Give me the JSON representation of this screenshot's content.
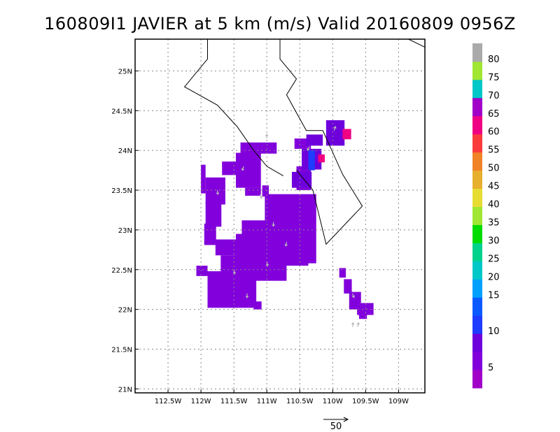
{
  "title": "160809I1 JAVIER at 5 km (m/s) Valid 20160809 0956Z",
  "map": {
    "lon_range": [
      -113,
      -108.6
    ],
    "lat_range": [
      20.95,
      25.4
    ],
    "lon_ticks": [
      {
        "value": -112.5,
        "label": "112.5W"
      },
      {
        "value": -112,
        "label": "112W"
      },
      {
        "value": -111.5,
        "label": "111.5W"
      },
      {
        "value": -111,
        "label": "111W"
      },
      {
        "value": -110.5,
        "label": "110.5W"
      },
      {
        "value": -110,
        "label": "110W"
      },
      {
        "value": -109.5,
        "label": "109.5W"
      },
      {
        "value": -109,
        "label": "109W"
      }
    ],
    "lat_ticks": [
      {
        "value": 25,
        "label": "25N"
      },
      {
        "value": 24.5,
        "label": "24.5N"
      },
      {
        "value": 24,
        "label": "24N"
      },
      {
        "value": 23.5,
        "label": "23.5N"
      },
      {
        "value": 23,
        "label": "23N"
      },
      {
        "value": 22.5,
        "label": "22.5N"
      },
      {
        "value": 22,
        "label": "22N"
      },
      {
        "value": 21.5,
        "label": "21.5N"
      },
      {
        "value": 21,
        "label": "21N"
      }
    ],
    "grid": true,
    "coastlines": [
      [
        [
          -111.9,
          25.4
        ],
        [
          -111.9,
          25.15
        ],
        [
          -112.25,
          24.8
        ],
        [
          -111.75,
          24.57
        ],
        [
          -111.45,
          24.3
        ],
        [
          -111.2,
          24.0
        ],
        [
          -111.0,
          23.8
        ],
        [
          -110.75,
          23.68
        ]
      ],
      [
        [
          -110.8,
          25.4
        ],
        [
          -110.8,
          25.15
        ],
        [
          -110.55,
          24.9
        ],
        [
          -110.7,
          24.7
        ],
        [
          -110.6,
          24.55
        ],
        [
          -110.4,
          24.25
        ],
        [
          -110.2,
          24.25
        ]
      ],
      [
        [
          -110.55,
          23.75
        ],
        [
          -110.3,
          23.5
        ],
        [
          -110.1,
          22.82
        ],
        [
          -109.55,
          23.3
        ],
        [
          -109.85,
          23.7
        ],
        [
          -110.15,
          24.25
        ],
        [
          -110.2,
          24.25
        ]
      ],
      [
        [
          -108.85,
          25.4
        ],
        [
          -108.6,
          25.3
        ]
      ]
    ],
    "wind_cells": [
      {
        "lon": -112.0,
        "lat": 23.82,
        "dlon": 0.07,
        "dlat": 0.36,
        "v": 6
      },
      {
        "lon": -111.93,
        "lat": 23.66,
        "dlon": 0.3,
        "dlat": 0.34,
        "v": 6
      },
      {
        "lon": -111.93,
        "lat": 23.35,
        "dlon": 0.24,
        "dlat": 0.31,
        "v": 6
      },
      {
        "lon": -111.95,
        "lat": 23.08,
        "dlon": 0.18,
        "dlat": 0.27,
        "v": 6
      },
      {
        "lon": -111.68,
        "lat": 23.86,
        "dlon": 0.36,
        "dlat": 0.17,
        "v": 6
      },
      {
        "lon": -111.4,
        "lat": 24.1,
        "dlon": 0.55,
        "dlat": 0.14,
        "v": 6
      },
      {
        "lon": -111.47,
        "lat": 23.97,
        "dlon": 0.38,
        "dlat": 0.44,
        "v": 6
      },
      {
        "lon": -111.33,
        "lat": 23.53,
        "dlon": 0.24,
        "dlat": 0.1,
        "v": 6
      },
      {
        "lon": -111.07,
        "lat": 23.56,
        "dlon": 0.1,
        "dlat": 0.14,
        "v": 6
      },
      {
        "lon": -111.03,
        "lat": 23.45,
        "dlon": 0.78,
        "dlat": 0.87,
        "v": 6
      },
      {
        "lon": -111.38,
        "lat": 23.12,
        "dlon": 0.36,
        "dlat": 0.23,
        "v": 6
      },
      {
        "lon": -111.47,
        "lat": 22.95,
        "dlon": 1.1,
        "dlat": 0.4,
        "v": 6
      },
      {
        "lon": -110.5,
        "lat": 22.95,
        "dlon": 0.24,
        "dlat": 0.28,
        "v": 6
      },
      {
        "lon": -111.78,
        "lat": 22.88,
        "dlon": 0.33,
        "dlat": 0.2,
        "v": 6
      },
      {
        "lon": -111.7,
        "lat": 22.68,
        "dlon": 1.0,
        "dlat": 0.32,
        "v": 6
      },
      {
        "lon": -111.9,
        "lat": 22.48,
        "dlon": 0.74,
        "dlat": 0.46,
        "v": 6
      },
      {
        "lon": -112.07,
        "lat": 22.55,
        "dlon": 0.17,
        "dlat": 0.13,
        "v": 6
      },
      {
        "lon": -111.2,
        "lat": 22.1,
        "dlon": 0.12,
        "dlat": 0.1,
        "v": 6
      },
      {
        "lon": -110.55,
        "lat": 23.8,
        "dlon": 0.22,
        "dlat": 0.3,
        "v": 6
      },
      {
        "lon": -110.58,
        "lat": 24.15,
        "dlon": 0.25,
        "dlat": 0.13,
        "v": 6
      },
      {
        "lon": -110.4,
        "lat": 24.2,
        "dlon": 0.25,
        "dlat": 0.14,
        "v": 10
      },
      {
        "lon": -110.47,
        "lat": 24.02,
        "dlon": 0.3,
        "dlat": 0.26,
        "v": 10
      },
      {
        "lon": -110.62,
        "lat": 23.73,
        "dlon": 0.3,
        "dlat": 0.2,
        "v": 10
      },
      {
        "lon": -110.37,
        "lat": 24.0,
        "dlon": 0.1,
        "dlat": 0.25,
        "v": 14
      },
      {
        "lon": -110.1,
        "lat": 24.38,
        "dlon": 0.28,
        "dlat": 0.32,
        "v": 10
      },
      {
        "lon": -109.85,
        "lat": 24.27,
        "dlon": 0.13,
        "dlat": 0.13,
        "v": 66
      },
      {
        "lon": -110.22,
        "lat": 23.95,
        "dlon": 0.1,
        "dlat": 0.1,
        "v": 66
      },
      {
        "lon": -109.9,
        "lat": 22.52,
        "dlon": 0.1,
        "dlat": 0.12,
        "v": 6
      },
      {
        "lon": -109.83,
        "lat": 22.38,
        "dlon": 0.12,
        "dlat": 0.18,
        "v": 6
      },
      {
        "lon": -109.75,
        "lat": 22.22,
        "dlon": 0.18,
        "dlat": 0.22,
        "v": 6
      },
      {
        "lon": -109.63,
        "lat": 22.08,
        "dlon": 0.25,
        "dlat": 0.15,
        "v": 6
      },
      {
        "lon": -109.6,
        "lat": 21.98,
        "dlon": 0.12,
        "dlat": 0.1,
        "v": 6
      }
    ],
    "wind_arrows": [
      {
        "lon": -111.35,
        "lat": 23.8,
        "dir": 200
      },
      {
        "lon": -111.1,
        "lat": 23.45,
        "dir": 160
      },
      {
        "lon": -110.9,
        "lat": 23.1,
        "dir": 180
      },
      {
        "lon": -110.7,
        "lat": 22.85,
        "dir": 190
      },
      {
        "lon": -111.5,
        "lat": 22.5,
        "dir": 170
      },
      {
        "lon": -111.75,
        "lat": 23.5,
        "dir": 175
      },
      {
        "lon": -110.35,
        "lat": 24.05,
        "dir": 210
      },
      {
        "lon": -109.98,
        "lat": 24.25,
        "dir": 20
      },
      {
        "lon": -109.7,
        "lat": 22.2,
        "dir": 160
      },
      {
        "lon": -109.7,
        "lat": 21.78,
        "dir": 10
      },
      {
        "lon": -109.62,
        "lat": 21.78,
        "dir": 10
      },
      {
        "lon": -111.0,
        "lat": 22.6,
        "dir": 170
      },
      {
        "lon": -111.3,
        "lat": 22.2,
        "dir": 180
      },
      {
        "lon": -111.0,
        "lat": 24.15,
        "dir": 0
      }
    ]
  },
  "colorbar": {
    "bins": [
      {
        "color": "#a000c8",
        "label": ""
      },
      {
        "color": "#8200dc",
        "label": "5"
      },
      {
        "color": "#6e00dc",
        "label": ""
      },
      {
        "color": "#1e3cff",
        "label": "10"
      },
      {
        "color": "#0a5aff",
        "label": ""
      },
      {
        "color": "#00a0ff",
        "label": "15"
      },
      {
        "color": "#00c8c8",
        "label": "20"
      },
      {
        "color": "#00d28c",
        "label": "25"
      },
      {
        "color": "#00dc00",
        "label": "30"
      },
      {
        "color": "#a0e632",
        "label": "35"
      },
      {
        "color": "#e6dc32",
        "label": "40"
      },
      {
        "color": "#e6af2d",
        "label": "45"
      },
      {
        "color": "#f08228",
        "label": "50"
      },
      {
        "color": "#fa3c3c",
        "label": "55"
      },
      {
        "color": "#f00082",
        "label": "60"
      },
      {
        "color": "#a000c8",
        "label": "65"
      },
      {
        "color": "#00c8c8",
        "label": "70"
      },
      {
        "color": "#a0e632",
        "label": "75"
      },
      {
        "color": "#aaaaaa",
        "label": "80"
      }
    ]
  },
  "scale_vector": {
    "label": "50"
  }
}
